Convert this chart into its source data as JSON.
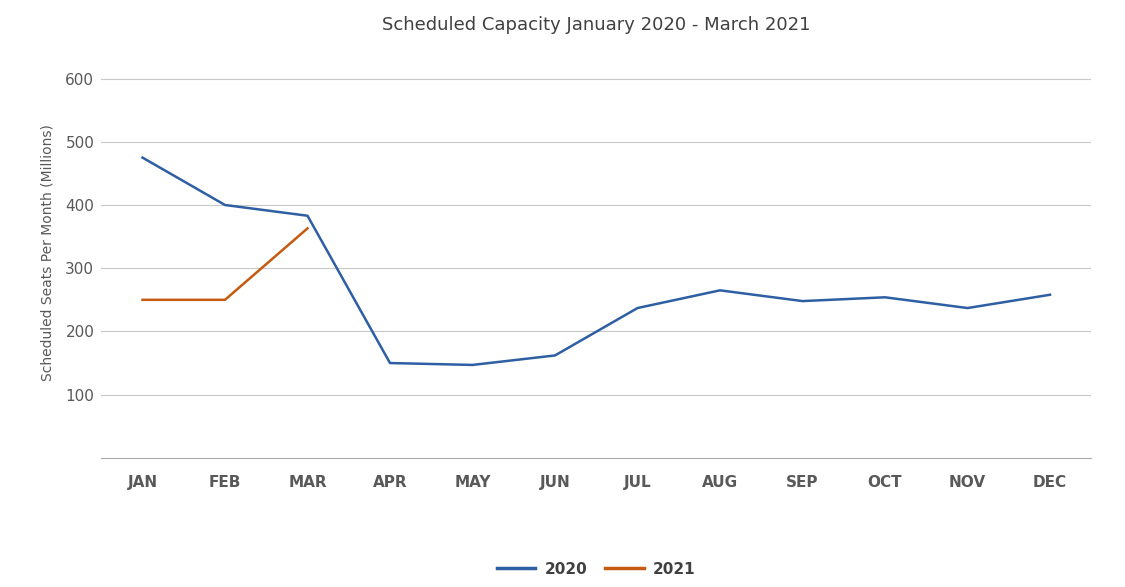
{
  "title": "Scheduled Capacity January 2020 - March 2021",
  "ylabel": "Scheduled Seats Per Month (Millions)",
  "months": [
    "JAN",
    "FEB",
    "MAR",
    "APR",
    "MAY",
    "JUN",
    "JUL",
    "AUG",
    "SEP",
    "OCT",
    "NOV",
    "DEC"
  ],
  "data_2020": [
    475,
    400,
    383,
    150,
    147,
    162,
    237,
    265,
    248,
    254,
    237,
    258
  ],
  "data_2021": [
    250,
    250,
    363
  ],
  "color_2020": "#2E5FA3",
  "color_2021": "#C55A11",
  "ylim": [
    0,
    650
  ],
  "yticks": [
    100,
    200,
    300,
    400,
    500,
    600
  ],
  "legend_labels": [
    "2020",
    "2021"
  ],
  "background_color": "#FFFFFF",
  "grid_color": "#C8C8C8",
  "title_fontsize": 13,
  "label_fontsize": 10,
  "tick_fontsize": 11,
  "legend_fontsize": 11
}
